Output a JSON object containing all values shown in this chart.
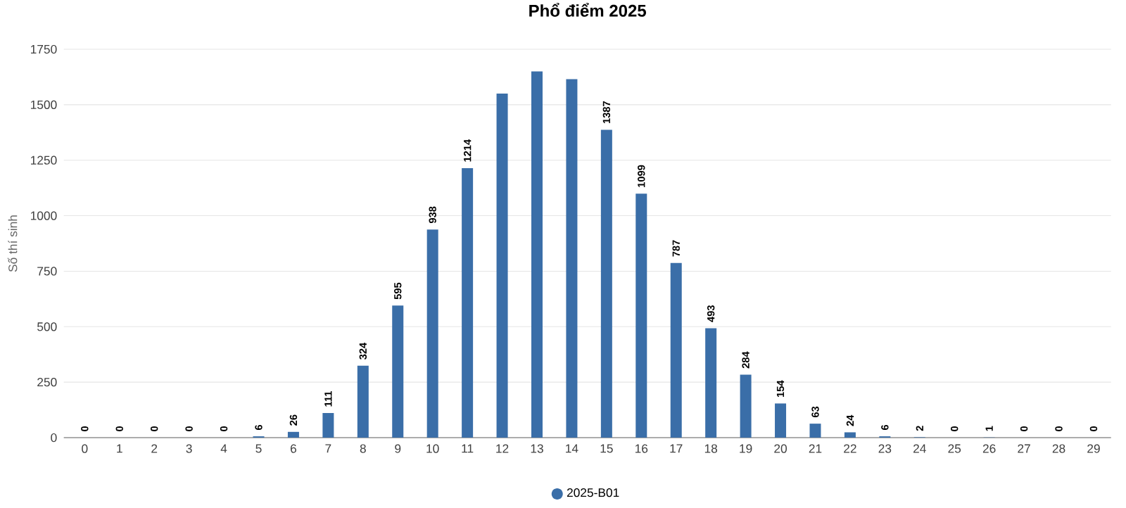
{
  "chart_data": {
    "type": "bar",
    "title": "Phổ điểm 2025",
    "ylabel": "Số thí sinh",
    "categories": [
      "0",
      "1",
      "2",
      "3",
      "4",
      "5",
      "6",
      "7",
      "8",
      "9",
      "10",
      "11",
      "12",
      "13",
      "14",
      "15",
      "16",
      "17",
      "18",
      "19",
      "20",
      "21",
      "22",
      "23",
      "24",
      "25",
      "26",
      "27",
      "28",
      "29"
    ],
    "series": [
      {
        "name": "2025-B01",
        "color": "#3a6ea8",
        "values": [
          0,
          0,
          0,
          0,
          0,
          6,
          26,
          111,
          324,
          595,
          938,
          1214,
          1550,
          1650,
          1615,
          1387,
          1099,
          787,
          493,
          284,
          154,
          63,
          24,
          6,
          2,
          0,
          1,
          0,
          0,
          0
        ],
        "value_labels": [
          "0",
          "0",
          "0",
          "0",
          "0",
          "6",
          "26",
          "111",
          "324",
          "595",
          "938",
          "1214",
          null,
          null,
          null,
          "1387",
          "1099",
          "787",
          "493",
          "284",
          "154",
          "63",
          "24",
          "6",
          "2",
          "0",
          "1",
          "0",
          "0",
          "0"
        ]
      }
    ],
    "ylim": [
      0,
      1750
    ],
    "yticks": [
      0,
      250,
      500,
      750,
      1000,
      1250,
      1500,
      1750
    ],
    "grid": "y",
    "legend": "bottom"
  }
}
